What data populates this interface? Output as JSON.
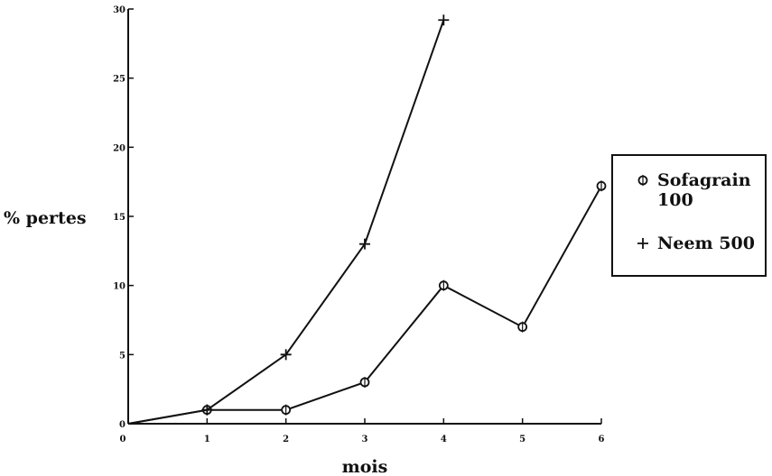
{
  "chart_data": {
    "type": "line",
    "title": "",
    "xlabel": "mois",
    "ylabel": "% pertes",
    "xlim": [
      0,
      6
    ],
    "ylim": [
      0,
      30
    ],
    "x_ticks": [
      "0",
      "1",
      "2",
      "3",
      "4",
      "5",
      "6"
    ],
    "y_ticks": [
      "0",
      "5",
      "10",
      "15",
      "20",
      "25",
      "30"
    ],
    "grid": false,
    "legend_position": "right",
    "series": [
      {
        "name": "Sofagrain 100",
        "legend_lines": [
          "Sofagrain",
          "100"
        ],
        "marker": "circle",
        "x": [
          0,
          1,
          2,
          3,
          4,
          5,
          6
        ],
        "y": [
          0,
          1,
          1,
          3,
          10,
          7,
          17.2
        ]
      },
      {
        "name": "Neem 500",
        "legend_lines": [
          "Neem 500"
        ],
        "marker": "plus",
        "x": [
          0,
          1,
          2,
          3,
          4
        ],
        "y": [
          0,
          1,
          5,
          13,
          29.2
        ]
      }
    ]
  }
}
